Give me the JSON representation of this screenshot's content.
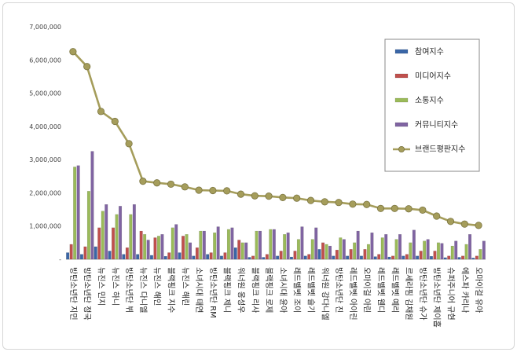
{
  "chart_data": {
    "type": "bar",
    "ylim": [
      0,
      7000000
    ],
    "yticks": [
      0,
      1000000,
      2000000,
      3000000,
      4000000,
      5000000,
      6000000,
      7000000
    ],
    "ytick_labels": [
      "-",
      "1,000,000",
      "2,000,000",
      "3,000,000",
      "4,000,000",
      "5,000,000",
      "6,000,000",
      "7,000,000"
    ],
    "legend_position": "top-right",
    "categories": [
      "방탄소년단 지민",
      "방탄소년단 정국",
      "뉴진스 민지",
      "뉴진스 하니",
      "방탄소년단 뷔",
      "뉴진스 다니엘",
      "뉴진스 해인",
      "블랙핑크 지수",
      "뉴진스 해린",
      "소녀시대 태연",
      "방탄소년단 RM",
      "블랙핑크 제니",
      "워너원 옹성우",
      "블랙핑크 리사",
      "블랙핑크 로제",
      "소녀시대 윤아",
      "레드벨벳 조이",
      "레드벨벳 슬기",
      "워너원 강다니엘",
      "방탄소년단 진",
      "레드벨벳 아이린",
      "오마이걸 아린",
      "레드벨벳 웬디",
      "레드벨벳 예리",
      "르세라핌 김채원",
      "방탄소년단 슈가",
      "방탄소년단 제이홉",
      "슈퍼주니어 규현",
      "에스파 카리나",
      "오마이걸 유아"
    ],
    "series": [
      {
        "name": "참여지수",
        "color": "#3a66a7",
        "values": [
          200000,
          150000,
          380000,
          250000,
          150000,
          150000,
          120000,
          90000,
          200000,
          100000,
          150000,
          100000,
          350000,
          60000,
          60000,
          100000,
          70000,
          100000,
          300000,
          100000,
          100000,
          100000,
          80000,
          70000,
          100000,
          100000,
          90000,
          50000,
          60000,
          40000
        ]
      },
      {
        "name": "미디어지수",
        "color": "#c0504d",
        "values": [
          450000,
          380000,
          950000,
          950000,
          350000,
          850000,
          650000,
          200000,
          700000,
          350000,
          200000,
          200000,
          580000,
          100000,
          150000,
          250000,
          250000,
          150000,
          500000,
          280000,
          300000,
          300000,
          150000,
          100000,
          150000,
          250000,
          250000,
          100000,
          100000,
          100000
        ]
      },
      {
        "name": "소통지수",
        "color": "#9bbb59",
        "values": [
          2780000,
          2050000,
          1450000,
          1350000,
          1350000,
          750000,
          700000,
          950000,
          750000,
          850000,
          800000,
          900000,
          500000,
          850000,
          900000,
          750000,
          600000,
          600000,
          450000,
          650000,
          500000,
          450000,
          650000,
          600000,
          500000,
          550000,
          500000,
          400000,
          450000,
          300000
        ]
      },
      {
        "name": "커뮤니티지수",
        "color": "#8064a2",
        "values": [
          2820000,
          3250000,
          1650000,
          1600000,
          1650000,
          580000,
          750000,
          1050000,
          500000,
          850000,
          980000,
          950000,
          500000,
          850000,
          900000,
          800000,
          980000,
          950000,
          400000,
          600000,
          850000,
          800000,
          750000,
          750000,
          880000,
          600000,
          480000,
          550000,
          750000,
          550000
        ]
      }
    ],
    "line": {
      "name": "브랜드평판지수",
      "color": "#a59d5b",
      "values": [
        6250000,
        5800000,
        4450000,
        4150000,
        3480000,
        2350000,
        2300000,
        2260000,
        2180000,
        2080000,
        2070000,
        2060000,
        1960000,
        1910000,
        1900000,
        1860000,
        1840000,
        1770000,
        1730000,
        1710000,
        1660000,
        1650000,
        1530000,
        1530000,
        1520000,
        1480000,
        1300000,
        1140000,
        1060000,
        1020000
      ]
    }
  }
}
